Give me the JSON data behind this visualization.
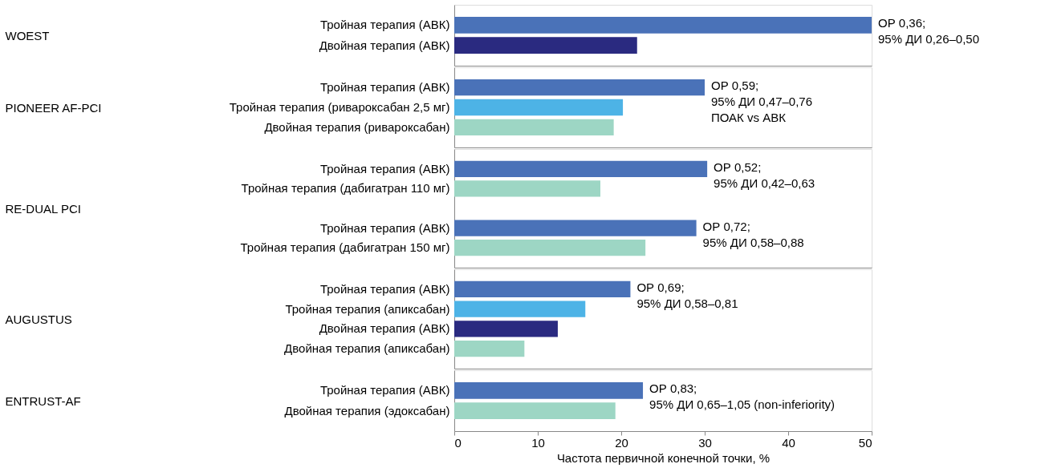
{
  "chart_data": [
    {
      "type": "bar",
      "orientation": "horizontal",
      "ylabel": "WOEST",
      "categories": [
        "Тройная терапия (АВК)",
        "Двойная терапия (АВК)"
      ],
      "values": [
        50,
        21.9
      ],
      "colors": [
        "#4a72b8",
        "#2a2a80"
      ],
      "annotations": [
        "ОР 0,36;\n95% ДИ 0,26–0,50"
      ],
      "xlim": [
        0,
        50
      ],
      "xticks": [
        0,
        10,
        20,
        30,
        40,
        50
      ],
      "tick_labels": "y"
    },
    {
      "type": "bar",
      "orientation": "horizontal",
      "ylabel": "PIONEER AF-PCI",
      "categories": [
        "Тройная терапия (АВК)",
        "Тройная терапия (ривароксабан 2,5 мг)",
        "Двойная терапия (ривароксабан)"
      ],
      "values": [
        30.0,
        20.2,
        19.1
      ],
      "colors": [
        "#4a72b8",
        "#4db3e6",
        "#9dd6c4"
      ],
      "annotations": [
        "ОР 0,59;\n95% ДИ 0,47–0,76\nПОАК vs АВК"
      ],
      "xlim": [
        0,
        50
      ],
      "xticks": [
        0,
        10,
        20,
        30,
        40,
        50
      ],
      "tick_labels": "y"
    },
    {
      "type": "bar",
      "orientation": "horizontal",
      "ylabel": "RE-DUAL PCI",
      "categories": [
        "Тройная терапия (АВК)",
        "Тройная терапия (дабигатран 110 мг)",
        null,
        "Тройная терапия (АВК)",
        "Тройная терапия (дабигатран 150 мг)"
      ],
      "values": [
        30.3,
        17.5,
        null,
        29.0,
        22.9
      ],
      "colors": [
        "#4a72b8",
        "#9dd6c4",
        null,
        "#4a72b8",
        "#9dd6c4"
      ],
      "annotations": [
        "ОР 0,52;\n95% ДИ 0,42–0,63",
        "ОР 0,72;\n95% ДИ 0,58–0,88"
      ],
      "xlim": [
        0,
        50
      ],
      "xticks": [
        0,
        10,
        20,
        30,
        40,
        50
      ],
      "tick_labels": "y"
    },
    {
      "type": "bar",
      "orientation": "horizontal",
      "ylabel": "AUGUSTUS",
      "categories": [
        "Тройная терапия (АВК)",
        "Тройная терапия (апиксабан)",
        "Двойная терапия (АВК)",
        "Двойная терапия (апиксабан)"
      ],
      "values": [
        21.1,
        15.7,
        12.4,
        8.4
      ],
      "colors": [
        "#4a72b8",
        "#4db3e6",
        "#2a2a80",
        "#9dd6c4"
      ],
      "annotations": [
        "ОР 0,69;\n95% ДИ 0,58–0,81"
      ],
      "xlim": [
        0,
        50
      ],
      "xticks": [
        0,
        10,
        20,
        30,
        40,
        50
      ],
      "tick_labels": "y"
    },
    {
      "type": "bar",
      "orientation": "horizontal",
      "ylabel": "ENTRUST-AF",
      "categories": [
        "Тройная терапия (АВК)",
        "Двойная терапия (эдоксабан)"
      ],
      "values": [
        22.6,
        19.3
      ],
      "colors": [
        "#4a72b8",
        "#9dd6c4"
      ],
      "annotations": [
        "ОР 0,83;\n95% ДИ 0,65–1,05 (non-inferiority)"
      ],
      "xlim": [
        0,
        50
      ],
      "xticks": [
        0,
        10,
        20,
        30,
        40,
        50
      ],
      "xlabel": "Частота первичной конечной точки, %"
    }
  ]
}
